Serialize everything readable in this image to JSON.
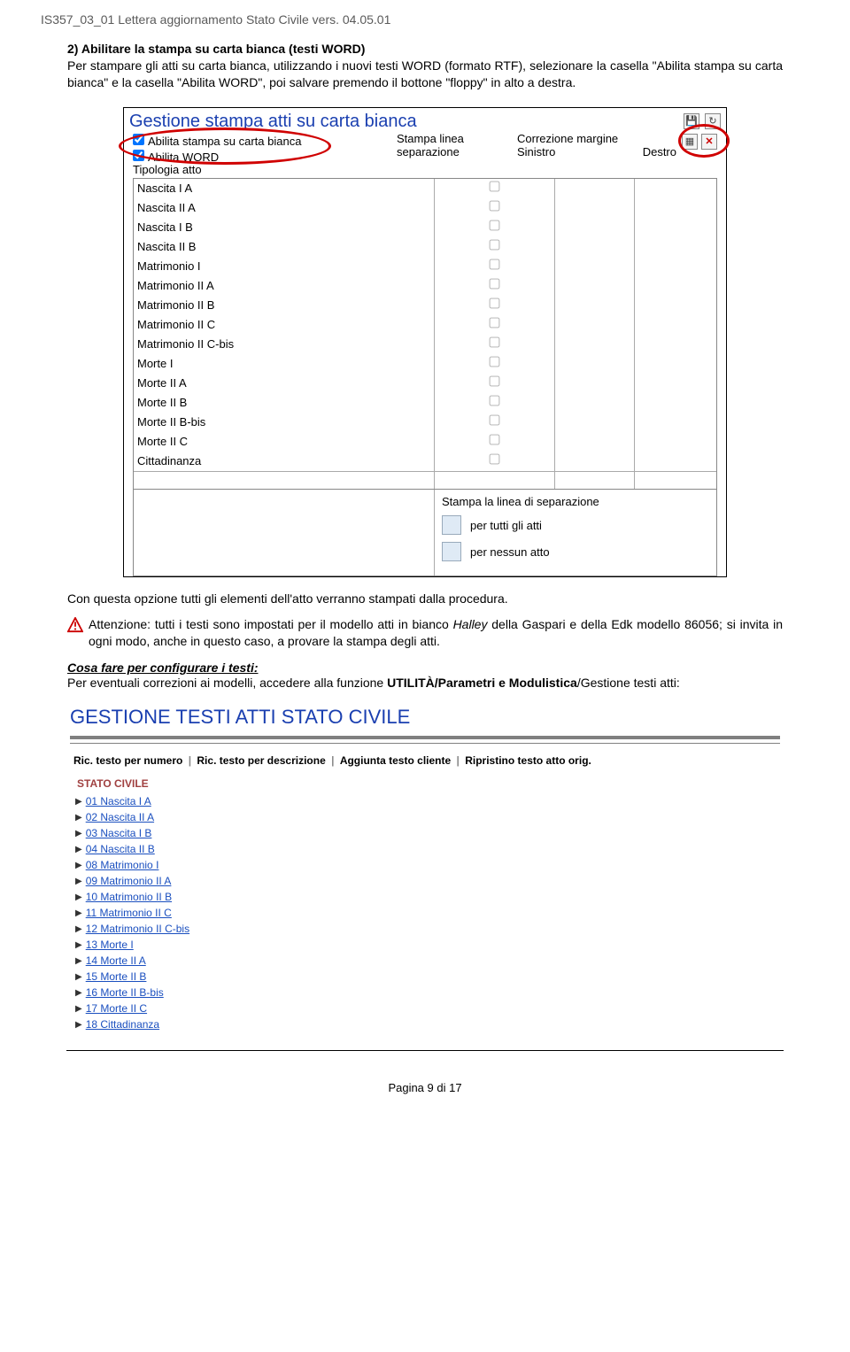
{
  "header": {
    "text": "IS357_03_01 Lettera aggiornamento Stato Civile vers. 04.05.01"
  },
  "para1": {
    "prefix": "2)   ",
    "title": "Abilitare la stampa su carta bianca (testi WORD)",
    "body": "Per stampare gli atti su carta bianca, utilizzando i nuovi testi WORD (formato RTF), selezionare la casella \"Abilita stampa su carta bianca\" e la casella \"Abilita WORD\", poi salvare premendo il bottone \"floppy\" in alto a destra."
  },
  "shot1": {
    "title": "Gestione stampa atti su carta bianca",
    "chk1": "Abilita stampa su carta bianca",
    "chk2": "Abilita WORD",
    "tipologia": "Tipologia atto",
    "col_stampa1": "Stampa linea",
    "col_stampa2": "separazione",
    "col_corr": "Correzione margine",
    "col_sin": "Sinistro",
    "col_dx": "Destro",
    "rows": [
      "Nascita  I A",
      "Nascita II A",
      "Nascita  I B",
      "Nascita II B",
      "Matrimonio I",
      "Matrimonio II A",
      "Matrimonio II B",
      "Matrimonio II C",
      "Matrimonio II C-bis",
      "Morte  I",
      "Morte II A",
      "Morte II B",
      "Morte II B-bis",
      "Morte II C",
      "Cittadinanza"
    ],
    "footer_hdr": "Stampa la linea di separazione",
    "opt1": "per tutti gli atti",
    "opt2": "per nessun atto"
  },
  "para2": "Con questa opzione tutti gli elementi dell'atto verranno stampati dalla procedura.",
  "warn": {
    "pre": " Attenzione: tutti i testi sono impostati per il modello atti in bianco ",
    "italic": "Halley",
    "post": " della Gaspari e della Edk modello 86056; si invita in ogni modo, anche in questo caso, a provare la stampa degli atti."
  },
  "cosa_title": "Cosa fare per configurare i testi:",
  "para3_pre": "Per eventuali correzioni ai modelli, accedere alla funzione ",
  "para3_bold": "UTILITÀ/Parametri e Modulistica",
  "para3_post": "/Gestione testi atti:",
  "shot2": {
    "title": "GESTIONE TESTI ATTI STATO CIVILE",
    "tabs": [
      "Ric. testo per numero",
      "Ric. testo per descrizione",
      "Aggiunta testo cliente",
      "Ripristino testo atto orig."
    ],
    "stato": "STATO CIVILE",
    "links": [
      "01 Nascita I A",
      "02 Nascita II A",
      "03 Nascita I B",
      "04 Nascita II B",
      "08 Matrimonio I",
      "09 Matrimonio II A",
      "10 Matrimonio II B",
      "11 Matrimonio II C",
      "12 Matrimonio II C-bis",
      "13 Morte I",
      "14 Morte II A",
      "15 Morte II B",
      "16 Morte II B-bis",
      "17 Morte II C",
      "18 Cittadinanza"
    ]
  },
  "footer": "Pagina 9 di 17"
}
